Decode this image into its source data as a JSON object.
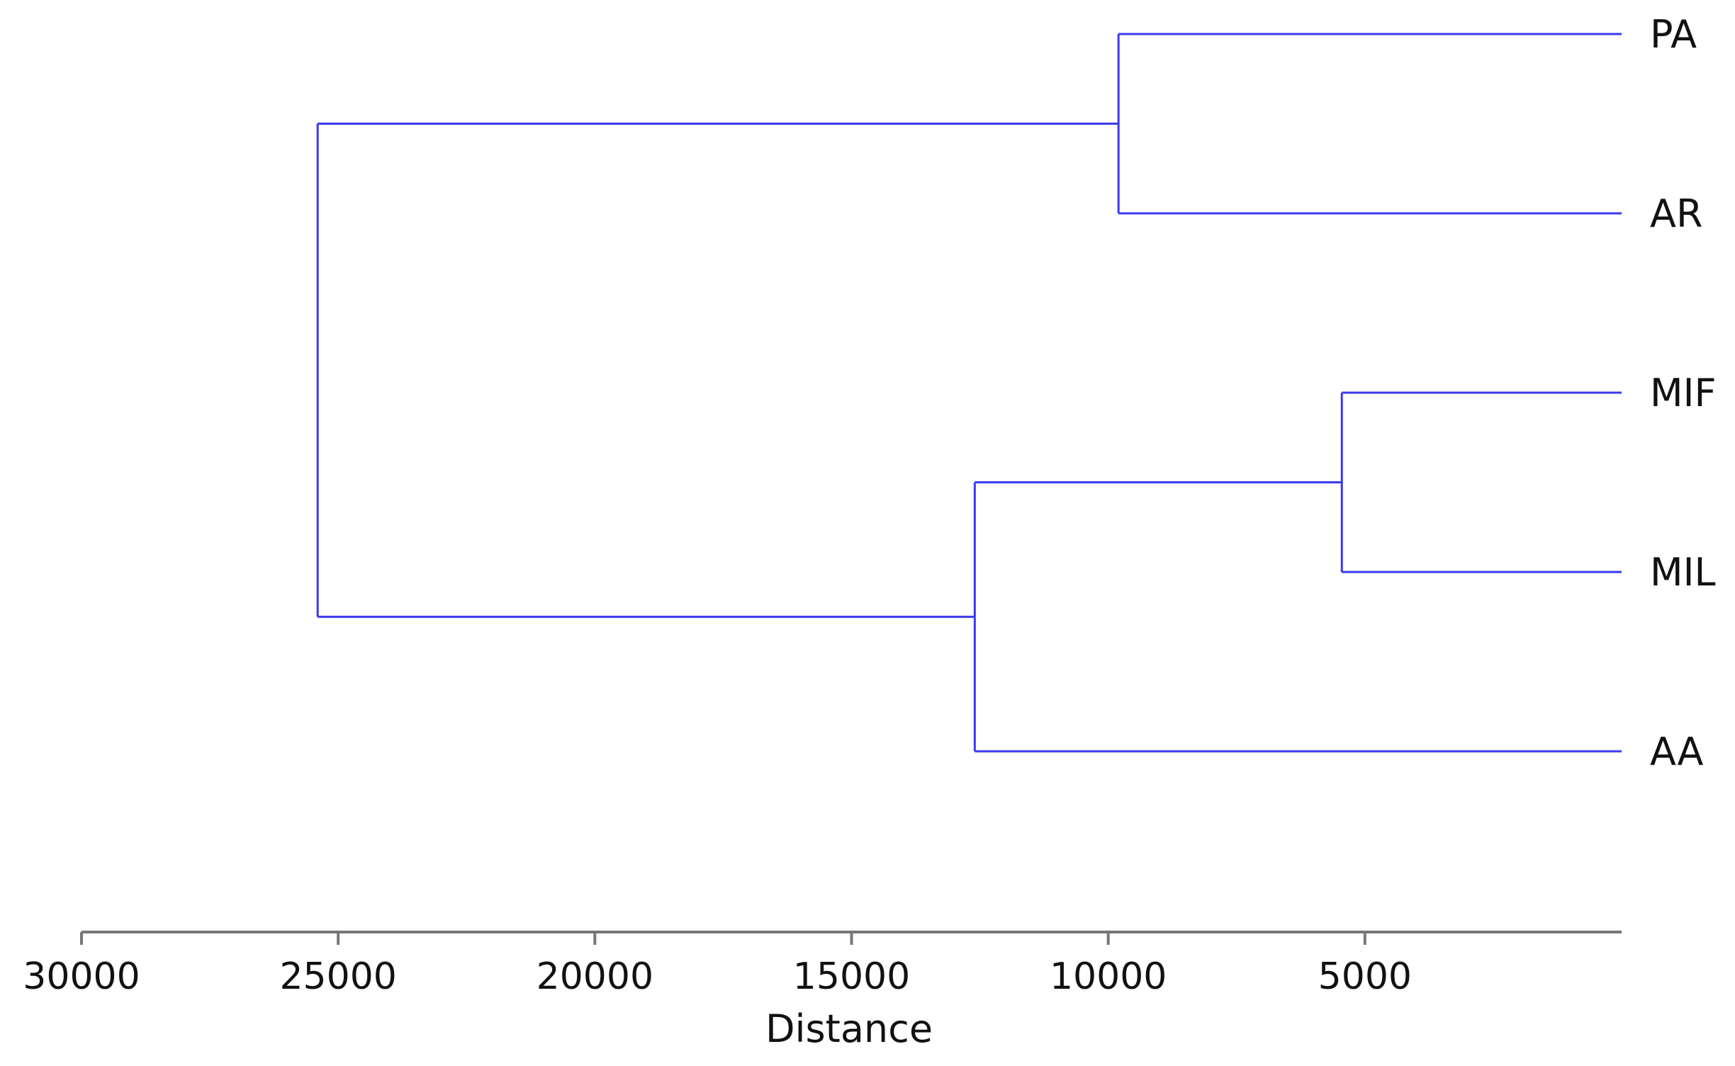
{
  "chart_data": {
    "type": "dendrogram",
    "xlabel": "Distance",
    "x_reversed": true,
    "xlim": [
      30000,
      0
    ],
    "ticks": [
      30000,
      25000,
      20000,
      15000,
      10000,
      5000
    ],
    "tick_labels": [
      "30000",
      "25000",
      "20000",
      "15000",
      "10000",
      "5000"
    ],
    "leaves": [
      "PA",
      "AR",
      "MIF",
      "MIL",
      "AA"
    ],
    "merges": [
      {
        "left": "PA",
        "right": "AR",
        "height": 9800
      },
      {
        "left": "MIF",
        "right": "MIL",
        "height": 5450
      },
      {
        "left": "MIF+MIL",
        "right": "AA",
        "height": 12600
      },
      {
        "left": "PA+AR",
        "right": "MIF+MIL+AA",
        "height": 25400
      }
    ],
    "colors": {
      "branch": "#3a3af0",
      "axis": "#777777",
      "text": "#111111"
    }
  }
}
